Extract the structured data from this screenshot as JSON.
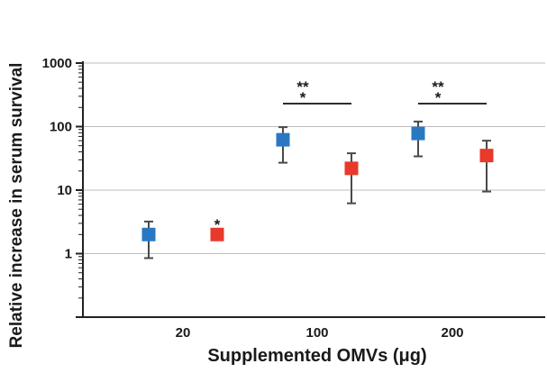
{
  "chart_data": {
    "type": "scatter",
    "title": "",
    "xlabel": "Supplemented OMVs (μg)",
    "ylabel": "Relative increase in serum survival",
    "y_scale": "log",
    "ylim": [
      0.1,
      1000
    ],
    "y_ticks": [
      "1",
      "10",
      "100",
      "1000"
    ],
    "categories": [
      "20",
      "100",
      "200"
    ],
    "grid": "horizontal at major ticks",
    "series": [
      {
        "color": "#2a78c2",
        "values": [
          2.0,
          62,
          78
        ],
        "err_low": [
          0.85,
          27,
          34
        ],
        "err_high": [
          3.2,
          98,
          120
        ]
      },
      {
        "color": "#e8392a",
        "values": [
          2.0,
          22,
          35
        ],
        "err_low": [
          1.9,
          6.2,
          9.5
        ],
        "err_high": [
          2.1,
          38,
          60
        ]
      }
    ],
    "annotations": [
      {
        "category": "20",
        "series": 1,
        "text": "*"
      },
      {
        "category": "100",
        "text_top": "**",
        "text_bottom": "*"
      },
      {
        "category": "200",
        "text_top": "**",
        "text_bottom": "*"
      }
    ]
  }
}
